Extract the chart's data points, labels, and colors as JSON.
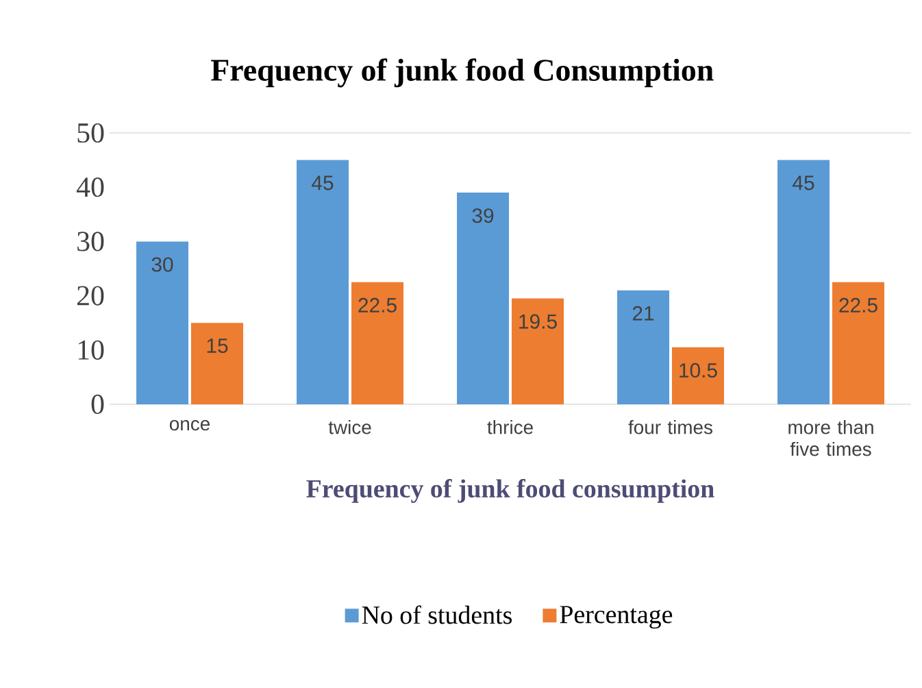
{
  "chart_data": {
    "type": "bar",
    "title": "Frequency of junk food Consumption",
    "xlabel": "Frequency of junk food consumption",
    "categories": [
      "once",
      "twice",
      "thrice",
      "four times",
      "more than five times"
    ],
    "series": [
      {
        "name": "No of students",
        "color": "#5b9bd5",
        "values": [
          30,
          45,
          39,
          21,
          45
        ]
      },
      {
        "name": "Percentage",
        "color": "#ed7d31",
        "values": [
          15,
          22.5,
          19.5,
          10.5,
          22.5
        ]
      }
    ],
    "ylim": [
      0,
      50
    ],
    "yticks": [
      0,
      10,
      20,
      30,
      40,
      50
    ],
    "data_labels": true,
    "legend": "bottom"
  }
}
